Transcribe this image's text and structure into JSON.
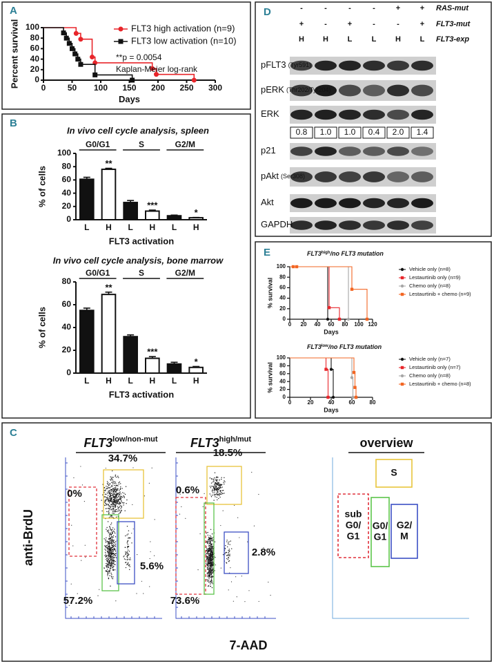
{
  "panels": [
    "A",
    "B",
    "C",
    "D",
    "E"
  ],
  "chart_data": [
    {
      "type": "step",
      "ylabel": "Percent survival",
      "xlabel": "Days",
      "xlim": [
        0,
        300
      ],
      "xticks": [
        0,
        50,
        100,
        150,
        200,
        250,
        300
      ],
      "ylim": [
        0,
        100
      ],
      "yticks": [
        0,
        20,
        40,
        60,
        80,
        100
      ],
      "series": [
        {
          "name": "FLT3 high activation (n=9)",
          "color": "#e8252a",
          "marker": "circle",
          "x": [
            0,
            57,
            65,
            85,
            90,
            190,
            197,
            263
          ],
          "values": [
            100,
            89,
            78,
            44,
            33,
            22,
            11,
            0
          ]
        },
        {
          "name": "FLT3 low activation (n=10)",
          "color": "#111111",
          "marker": "square",
          "x": [
            0,
            35,
            40,
            45,
            50,
            55,
            60,
            65,
            90,
            155
          ],
          "values": [
            100,
            90,
            80,
            70,
            60,
            50,
            40,
            30,
            10,
            0
          ]
        }
      ],
      "annotations": [
        "**p = 0.0054",
        "Kaplan-Meier log-rank"
      ]
    },
    {
      "type": "bar",
      "title": "In vivo cell cycle analysis, spleen",
      "ylabel": "% of cells",
      "xlabel": "FLT3 activation",
      "categories": [
        "L",
        "H",
        "L",
        "H",
        "L",
        "H"
      ],
      "values": [
        61,
        76,
        26,
        13,
        6,
        3
      ],
      "errors": [
        3,
        1.5,
        3,
        1.5,
        1,
        0.5
      ],
      "colors": [
        "#111111",
        "#ffffff",
        "#111111",
        "#ffffff",
        "#111111",
        "#ffffff"
      ],
      "groups": [
        "G0/G1",
        "S",
        "G2/M"
      ],
      "significance": [
        null,
        "**",
        null,
        "***",
        null,
        "*"
      ],
      "ylim": [
        0,
        100
      ],
      "yticks": [
        0,
        20,
        40,
        60,
        80,
        100
      ]
    },
    {
      "type": "bar",
      "title": "In vivo cell cycle analysis, bone marrow",
      "ylabel": "% of cells",
      "xlabel": "FLT3 activation",
      "categories": [
        "L",
        "H",
        "L",
        "H",
        "L",
        "H"
      ],
      "values": [
        55,
        69,
        32,
        13,
        8,
        5
      ],
      "errors": [
        2,
        2,
        1.5,
        1.5,
        1.5,
        0.8
      ],
      "colors": [
        "#111111",
        "#ffffff",
        "#111111",
        "#ffffff",
        "#111111",
        "#ffffff"
      ],
      "groups": [
        "G0/G1",
        "S",
        "G2/M"
      ],
      "significance": [
        null,
        "**",
        null,
        "***",
        null,
        "*"
      ],
      "ylim": [
        0,
        80
      ],
      "yticks": [
        0,
        20,
        40,
        60,
        80
      ]
    },
    {
      "type": "step",
      "title": {
        "gene": "FLT3",
        "level": "high",
        "rest": "/no FLT3 mutation"
      },
      "ylabel": "% survival",
      "xlabel": "Days",
      "xlim": [
        0,
        120
      ],
      "xticks": [
        0,
        20,
        40,
        60,
        80,
        100,
        120
      ],
      "ylim": [
        0,
        100
      ],
      "yticks": [
        0,
        20,
        40,
        60,
        80,
        100
      ],
      "series": [
        {
          "name": "Vehicle only (n=8)",
          "color": "#111111",
          "marker": "circle",
          "x": [
            0,
            55
          ],
          "values": [
            100,
            0
          ]
        },
        {
          "name": "Lestaurtinib only (n=9)",
          "color": "#e8252a",
          "marker": "square",
          "x": [
            0,
            57,
            72
          ],
          "values": [
            100,
            22,
            0
          ]
        },
        {
          "name": "Chemo only (n=8)",
          "color": "#a6a6a6",
          "marker": "circle",
          "x": [
            0,
            85
          ],
          "values": [
            100,
            0
          ]
        },
        {
          "name": "Lestaurtinib + chemo (n=9)",
          "color": "#f26522",
          "marker": "square",
          "x": [
            0,
            5,
            10,
            90,
            112
          ],
          "values": [
            100,
            100,
            100,
            57,
            0
          ]
        }
      ]
    },
    {
      "type": "step",
      "title": {
        "gene": "FLT3",
        "level": "low",
        "rest": "/no FLT3 mutation"
      },
      "ylabel": "% survival",
      "xlabel": "Days",
      "xlim": [
        0,
        80
      ],
      "xticks": [
        0,
        20,
        40,
        60,
        80
      ],
      "ylim": [
        0,
        100
      ],
      "yticks": [
        0,
        20,
        40,
        60,
        80,
        100
      ],
      "series": [
        {
          "name": "Vehicle only (n=7)",
          "color": "#111111",
          "marker": "circle",
          "x": [
            0,
            40,
            42
          ],
          "values": [
            100,
            71,
            0
          ]
        },
        {
          "name": "Lestaurtinib only (n=7)",
          "color": "#e8252a",
          "marker": "square",
          "x": [
            0,
            35,
            37
          ],
          "values": [
            100,
            71,
            0
          ]
        },
        {
          "name": "Chemo only (n=8)",
          "color": "#a6a6a6",
          "marker": "circle",
          "x": [
            0,
            60,
            61
          ],
          "values": [
            100,
            50,
            0
          ]
        },
        {
          "name": "Lestaurtinib + chemo (n=8)",
          "color": "#f26522",
          "marker": "square",
          "x": [
            0,
            62,
            63,
            64
          ],
          "values": [
            100,
            63,
            25,
            0
          ]
        }
      ]
    }
  ],
  "blot": {
    "header_rows": [
      {
        "label": "RAS-mut",
        "cells": [
          "-",
          "-",
          "-",
          "-",
          "+",
          "+"
        ]
      },
      {
        "label": "FLT3-mut",
        "cells": [
          "+",
          "-",
          "+",
          "-",
          "-",
          "+"
        ]
      },
      {
        "label": "FLT3-exp",
        "cells": [
          "H",
          "H",
          "L",
          "L",
          "H",
          "L"
        ]
      }
    ],
    "rows": [
      {
        "name": "pFLT3",
        "detail": "(Tyr591)"
      },
      {
        "name": "pERK",
        "detail": "(Thr202/Tyr204)"
      },
      {
        "name": "ERK"
      },
      {
        "name": "p21"
      },
      {
        "name": "pAkt",
        "detail": "(Ser308)"
      },
      {
        "name": "Akt"
      },
      {
        "name": "GAPDH"
      }
    ],
    "ratios": [
      "0.8",
      "1.0",
      "1.0",
      "0.4",
      "2.0",
      "1.4"
    ]
  },
  "flow": {
    "ylabel": "anti-BrdU",
    "xlabel": "7-AAD",
    "plots": [
      {
        "gene": "FLT3",
        "sup": "low/non-mut",
        "gates": {
          "S": "34.7%",
          "subG1": "0%",
          "G1": "57.2%",
          "G2M": "5.6%"
        }
      },
      {
        "gene": "FLT3",
        "sup": "high/mut",
        "gates": {
          "S": "18.5%",
          "subG1": "0.6%",
          "G1": "73.6%",
          "G2M": "2.8%"
        }
      }
    ],
    "overview": {
      "title": "overview",
      "S": [
        "S"
      ],
      "subG1": [
        "sub",
        "G0/",
        "G1"
      ],
      "G1": [
        "G0/",
        "G1"
      ],
      "G2M": [
        "G2/",
        "M"
      ]
    }
  }
}
